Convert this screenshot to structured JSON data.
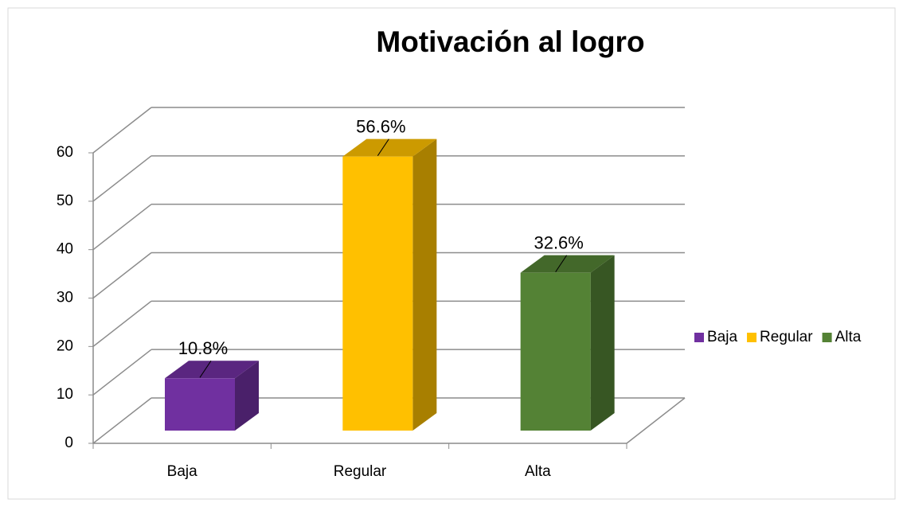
{
  "chart_data": {
    "type": "bar3d",
    "title": "Motivación al logro",
    "categories": [
      "Baja",
      "Regular",
      "Alta"
    ],
    "values": [
      10.8,
      56.6,
      32.6
    ],
    "value_labels": [
      "10.8%",
      "56.6%",
      "32.6%"
    ],
    "colors": [
      "#7030a0",
      "#ffc000",
      "#548235"
    ],
    "ylim": [
      0,
      60
    ],
    "yticks": [
      0,
      10,
      20,
      30,
      40,
      50,
      60
    ],
    "grid": true,
    "legend": "right"
  }
}
